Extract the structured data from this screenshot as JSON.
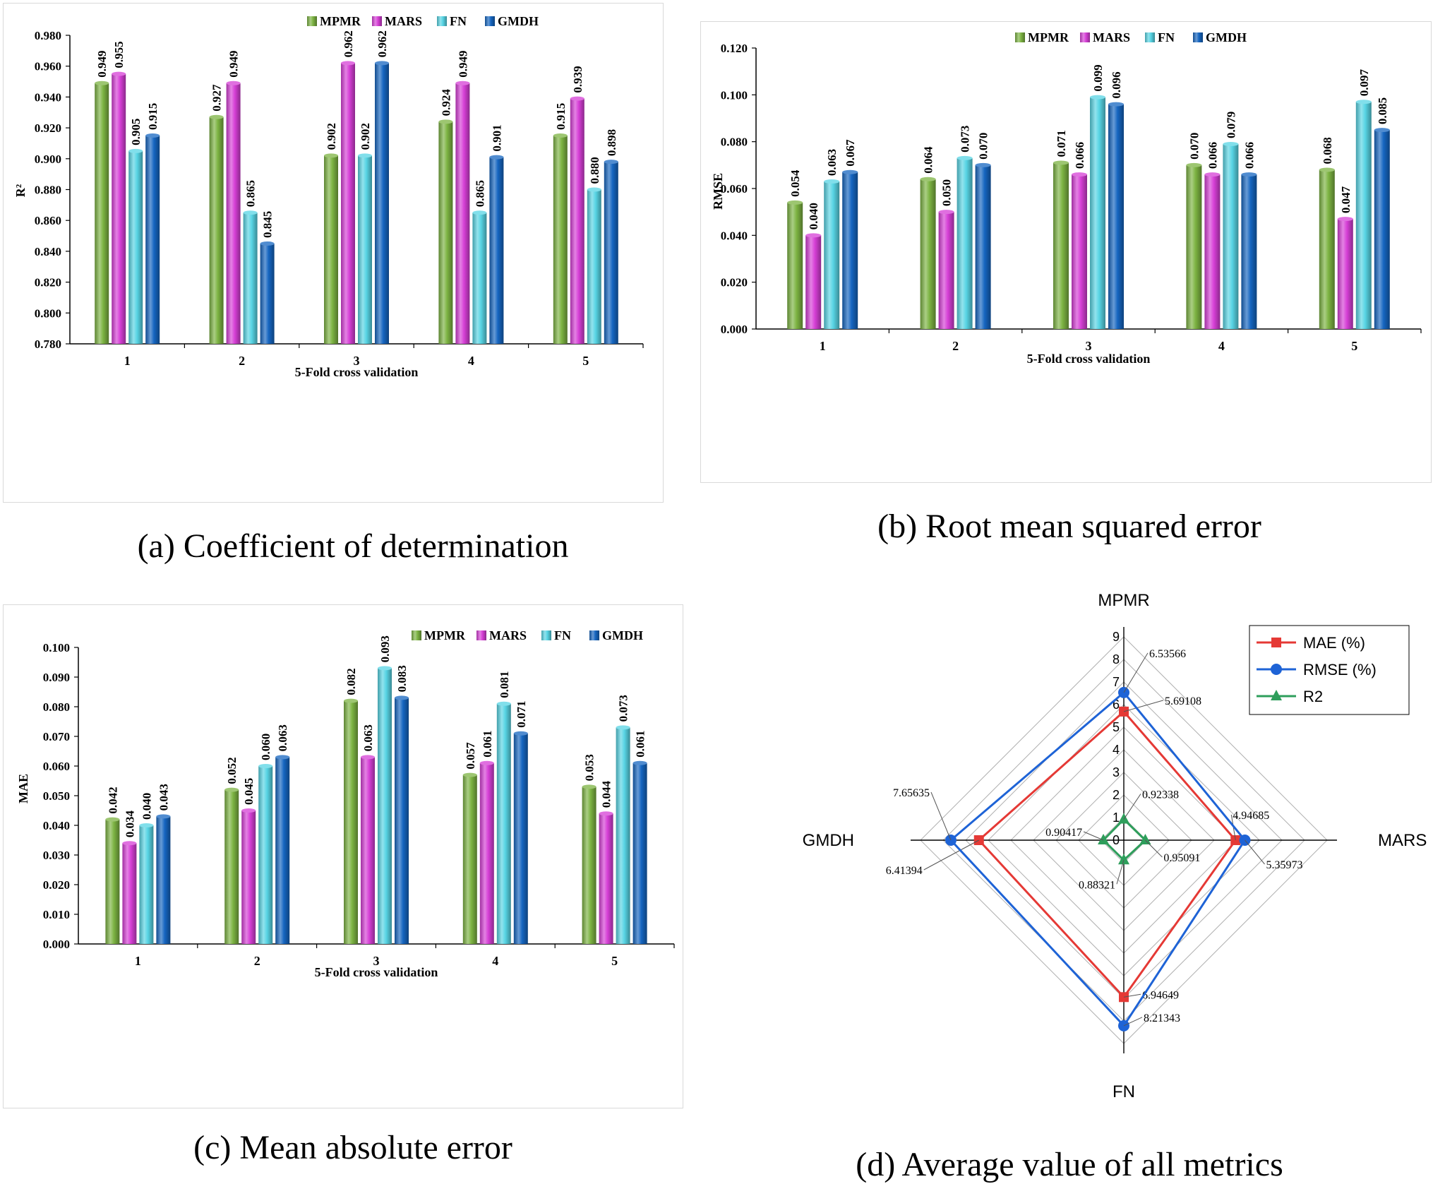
{
  "legend_colors": {
    "MPMR": "#7cb342",
    "MARS": "#d63fd6",
    "FN": "#57d4e4",
    "GMDH": "#1565c0"
  },
  "captions": {
    "a": "(a)  Coefficient of determination",
    "b": "(b)  Root mean squared error",
    "c": "(c)  Mean absolute error",
    "d": "(d)  Average value of all metrics"
  },
  "chart_data": [
    {
      "id": "a",
      "type": "bar",
      "xlabel": "5-Fold cross validation",
      "ylabel": "R²",
      "categories": [
        "1",
        "2",
        "3",
        "4",
        "5"
      ],
      "ylim": [
        0.78,
        0.98
      ],
      "yticks": [
        "0.780",
        "0.800",
        "0.820",
        "0.840",
        "0.860",
        "0.880",
        "0.900",
        "0.920",
        "0.940",
        "0.960",
        "0.980"
      ],
      "legend_position": "top-right",
      "series": [
        {
          "name": "MPMR",
          "values": [
            0.949,
            0.927,
            0.902,
            0.924,
            0.915
          ],
          "labels": [
            "0.949",
            "0.927",
            "0.902",
            "0.924",
            "0.915"
          ]
        },
        {
          "name": "MARS",
          "values": [
            0.955,
            0.949,
            0.962,
            0.949,
            0.939
          ],
          "labels": [
            "0.955",
            "0.949",
            "0.962",
            "0.949",
            "0.939"
          ]
        },
        {
          "name": "FN",
          "values": [
            0.905,
            0.865,
            0.902,
            0.865,
            0.88
          ],
          "labels": [
            "0.905",
            "0.865",
            "0.902",
            "0.865",
            "0.880"
          ]
        },
        {
          "name": "GMDH",
          "values": [
            0.915,
            0.845,
            0.962,
            0.901,
            0.898
          ],
          "labels": [
            "0.915",
            "0.845",
            "0.962",
            "0.901",
            "0.898"
          ]
        }
      ]
    },
    {
      "id": "b",
      "type": "bar",
      "xlabel": "5-Fold cross validation",
      "ylabel": "RMSE",
      "categories": [
        "1",
        "2",
        "3",
        "4",
        "5"
      ],
      "ylim": [
        0,
        0.12
      ],
      "yticks": [
        "0.000",
        "0.020",
        "0.040",
        "0.060",
        "0.080",
        "0.100",
        "0.120"
      ],
      "legend_position": "top-right",
      "series": [
        {
          "name": "MPMR",
          "values": [
            0.054,
            0.064,
            0.071,
            0.07,
            0.068
          ],
          "labels": [
            "0.054",
            "0.064",
            "0.071",
            "0.070",
            "0.068"
          ]
        },
        {
          "name": "MARS",
          "values": [
            0.04,
            0.05,
            0.066,
            0.066,
            0.047
          ],
          "labels": [
            "0.040",
            "0.050",
            "0.066",
            "0.066",
            "0.047"
          ]
        },
        {
          "name": "FN",
          "values": [
            0.063,
            0.073,
            0.099,
            0.079,
            0.097
          ],
          "labels": [
            "0.063",
            "0.073",
            "0.099",
            "0.079",
            "0.097"
          ]
        },
        {
          "name": "GMDH",
          "values": [
            0.067,
            0.07,
            0.096,
            0.066,
            0.085
          ],
          "labels": [
            "0.067",
            "0.070",
            "0.096",
            "0.066",
            "0.085"
          ]
        }
      ]
    },
    {
      "id": "c",
      "type": "bar",
      "xlabel": "5-Fold cross validation",
      "ylabel": "MAE",
      "categories": [
        "1",
        "2",
        "3",
        "4",
        "5"
      ],
      "ylim": [
        0,
        0.1
      ],
      "yticks": [
        "0.000",
        "0.010",
        "0.020",
        "0.030",
        "0.040",
        "0.050",
        "0.060",
        "0.070",
        "0.080",
        "0.090",
        "0.100"
      ],
      "legend_position": "top-right",
      "series": [
        {
          "name": "MPMR",
          "values": [
            0.042,
            0.052,
            0.082,
            0.057,
            0.053
          ],
          "labels": [
            "0.042",
            "0.052",
            "0.082",
            "0.057",
            "0.053"
          ]
        },
        {
          "name": "MARS",
          "values": [
            0.034,
            0.045,
            0.063,
            0.061,
            0.044
          ],
          "labels": [
            "0.034",
            "0.045",
            "0.063",
            "0.061",
            "0.044"
          ]
        },
        {
          "name": "FN",
          "values": [
            0.04,
            0.06,
            0.093,
            0.081,
            0.073
          ],
          "labels": [
            "0.040",
            "0.060",
            "0.093",
            "0.081",
            "0.073"
          ]
        },
        {
          "name": "GMDH",
          "values": [
            0.043,
            0.063,
            0.083,
            0.071,
            0.061
          ],
          "labels": [
            "0.043",
            "0.063",
            "0.083",
            "0.071",
            "0.061"
          ]
        }
      ]
    },
    {
      "id": "d",
      "type": "radar",
      "axes": [
        "MPMR",
        "MARS",
        "FN",
        "GMDH"
      ],
      "rlim": [
        0,
        9
      ],
      "rticks": [
        "0",
        "1",
        "2",
        "3",
        "4",
        "5",
        "6",
        "7",
        "8",
        "9"
      ],
      "legend_position": "top-right",
      "series": [
        {
          "name": "MAE (%)",
          "color": "#e53935",
          "marker": "square",
          "values": [
            5.69108,
            4.94685,
            6.94649,
            6.41394
          ],
          "labels": [
            "5.69108",
            "4.94685",
            "6.94649",
            "6.41394"
          ]
        },
        {
          "name": "RMSE (%)",
          "color": "#1e63d6",
          "marker": "circle",
          "values": [
            6.53566,
            5.35973,
            8.21343,
            7.65635
          ],
          "labels": [
            "6.53566",
            "5.35973",
            "8.21343",
            "7.65635"
          ]
        },
        {
          "name": "R2",
          "color": "#2e9e5b",
          "marker": "triangle",
          "values": [
            0.92338,
            0.95091,
            0.88321,
            0.90417
          ],
          "labels": [
            "0.92338",
            "0.95091",
            "0.88321",
            "0.90417"
          ]
        }
      ]
    }
  ]
}
